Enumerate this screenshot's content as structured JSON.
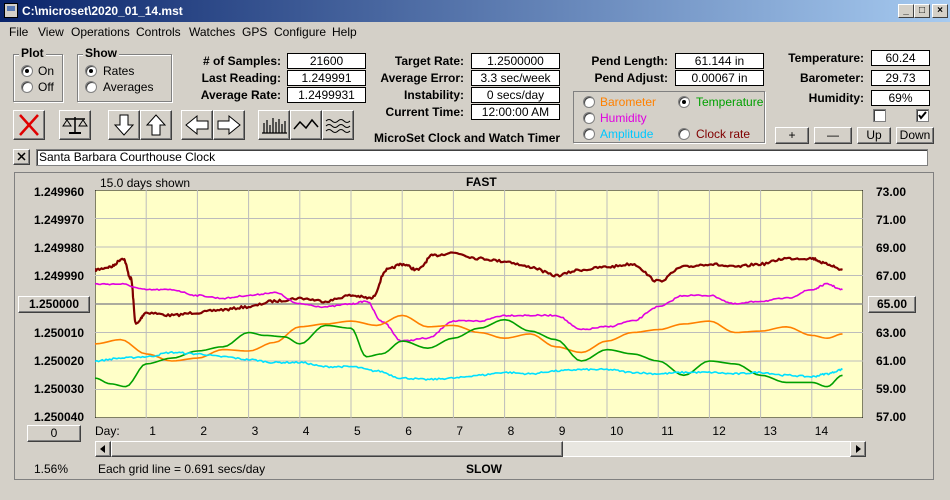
{
  "window": {
    "title": "C:\\microset\\2020_01_14.mst"
  },
  "menu": [
    "File",
    "View",
    "Operations",
    "Controls",
    "Watches",
    "GPS",
    "Configure",
    "Help"
  ],
  "plot_group": {
    "label": "Plot",
    "options": [
      "On",
      "Off"
    ],
    "selected": "On"
  },
  "show_group": {
    "label": "Show",
    "options": [
      "Rates",
      "Averages"
    ],
    "selected": "Rates"
  },
  "stats": {
    "samples_label": "# of Samples:",
    "samples": "21600",
    "last_label": "Last Reading:",
    "last": "1.249991",
    "avg_label": "Average Rate:",
    "avg": "1.2499931"
  },
  "target": {
    "rate_label": "Target Rate:",
    "rate": "1.2500000",
    "error_label": "Average Error:",
    "error": "3.3 sec/week",
    "instab_label": "Instability:",
    "instab": "0 secs/day",
    "time_label": "Current Time:",
    "time": "12:00:00 AM"
  },
  "pend": {
    "len_label": "Pend Length:",
    "len": "61.144 in",
    "adj_label": "Pend Adjust:",
    "adj": "0.00067 in"
  },
  "env": {
    "temp_label": "Temperature:",
    "temp": "60.24",
    "baro_label": "Barometer:",
    "baro": "29.73",
    "hum_label": "Humidity:",
    "hum": "69%",
    "chk1": false,
    "chk2": true
  },
  "sensor_select": {
    "selected": "Temperature",
    "items": [
      {
        "label": "Barometer",
        "color": "#ff8000"
      },
      {
        "label": "Temperature",
        "color": "#00a000"
      },
      {
        "label": "Humidity",
        "color": "#e000e0"
      },
      {
        "label": "Amplitude",
        "color": "#00c8ff"
      },
      {
        "label": "Clock rate",
        "color": "#800000"
      }
    ]
  },
  "adjust_buttons": [
    "+",
    "—",
    "Up",
    "Down"
  ],
  "app_caption": "MicroSet Clock and Watch Timer",
  "clock_name": "Santa Barbara Courthouse Clock",
  "icons": [
    "close-x-icon",
    "balance-scale-icon",
    "arrow-down-icon",
    "arrow-up-icon",
    "arrow-left-icon",
    "arrow-right-icon",
    "bar-graph-icon",
    "line-graph-icon",
    "smooth-graph-icon"
  ],
  "chart_data": {
    "type": "line",
    "days_shown": "15.0 days shown",
    "top_label": "FAST",
    "bottom_label": "SLOW",
    "grid_note": "Each grid line = 0.691 secs/day",
    "percent": "1.56%",
    "center_left_button": "1.250000",
    "center_right_button": "65.00",
    "bottom_left_button": "0",
    "x_label": "Day:",
    "x_ticks": [
      "1",
      "2",
      "3",
      "4",
      "5",
      "6",
      "7",
      "8",
      "9",
      "10",
      "11",
      "12",
      "13",
      "14"
    ],
    "y_left_ticks": [
      "1.249960",
      "1.249970",
      "1.249980",
      "1.249990",
      "1.250000",
      "1.250010",
      "1.250020",
      "1.250030",
      "1.250040"
    ],
    "y_right_ticks": [
      "73.00",
      "71.00",
      "69.00",
      "67.00",
      "65.00",
      "63.00",
      "61.00",
      "59.00",
      "57.00"
    ],
    "ylim_left": [
      1.24996,
      1.25004
    ],
    "ylim_right": [
      57,
      73
    ],
    "xlim": [
      0,
      15
    ],
    "background": "#ffffc8",
    "series": [
      {
        "name": "Clock rate",
        "color": "#800000",
        "axis": "left",
        "noise": 9e-07,
        "x": [
          0,
          0.3,
          0.55,
          0.7,
          0.8,
          1,
          1.5,
          2,
          2.5,
          3,
          3.5,
          4,
          4.5,
          5,
          5.4,
          5.7,
          6,
          6.3,
          6.6,
          7,
          7.5,
          8,
          8.5,
          9,
          9.5,
          10,
          10.5,
          11,
          11.5,
          12,
          12.5,
          13,
          13.5,
          14,
          14.3,
          14.6
        ],
        "y": [
          1.249988,
          1.249987,
          1.249984,
          1.249991,
          1.250007,
          1.250003,
          1.250004,
          1.250003,
          1.250002,
          1.250001,
          1.249999,
          1.249998,
          1.249999,
          1.249997,
          1.249998,
          1.249988,
          1.249986,
          1.249988,
          1.249983,
          1.249982,
          1.249984,
          1.249985,
          1.249987,
          1.24999,
          1.249988,
          1.249987,
          1.249986,
          1.249992,
          1.249987,
          1.249986,
          1.249987,
          1.249986,
          1.249984,
          1.249984,
          1.249986,
          1.249988
        ]
      },
      {
        "name": "Humidity",
        "color": "#e000e0",
        "axis": "left",
        "noise": 5e-07,
        "x": [
          0,
          0.5,
          1,
          1.5,
          2,
          2.5,
          3,
          3.5,
          4,
          4.5,
          5,
          5.3,
          5.6,
          6,
          6.5,
          7,
          7.5,
          8,
          8.5,
          9,
          9.5,
          10,
          10.5,
          11,
          11.5,
          12,
          12.5,
          13,
          13.5,
          14,
          14.3,
          14.6
        ],
        "y": [
          1.249993,
          1.249993,
          1.249995,
          1.249995,
          1.249997,
          1.249998,
          1.249997,
          1.249996,
          1.25,
          1.250001,
          1.25,
          1.249999,
          1.250006,
          1.250013,
          1.250012,
          1.250006,
          1.250006,
          1.250004,
          1.250004,
          1.250004,
          1.250009,
          1.250008,
          1.250006,
          1.250001,
          1.249997,
          1.249997,
          1.25,
          1.249999,
          1.249998,
          1.249995,
          1.249993,
          1.249995
        ]
      },
      {
        "name": "Barometer",
        "color": "#ff8000",
        "axis": "right",
        "x": [
          0,
          0.5,
          1,
          1.5,
          2,
          2.5,
          3,
          3.5,
          4,
          4.5,
          5,
          5.5,
          6,
          6.5,
          7,
          7.5,
          8,
          8.5,
          9,
          9.5,
          10,
          10.5,
          11,
          11.5,
          12,
          12.5,
          13,
          13.5,
          14,
          14.3,
          14.6
        ],
        "y": [
          62.2,
          62.5,
          61.5,
          61.0,
          61.2,
          61.8,
          61.7,
          62.3,
          63.4,
          63.6,
          63.8,
          63.5,
          64.2,
          63.4,
          63.5,
          63.0,
          62.6,
          62.9,
          62.0,
          61.6,
          62.4,
          63.0,
          63.2,
          63.6,
          63.8,
          63.0,
          63.1,
          63.4,
          62.8,
          62.6,
          62.9
        ]
      },
      {
        "name": "Temperature",
        "color": "#00a000",
        "axis": "right",
        "x": [
          0,
          0.3,
          0.6,
          1,
          1.5,
          2,
          2.5,
          3,
          3.3,
          3.7,
          4,
          4.5,
          5,
          5.3,
          5.6,
          6,
          6.5,
          7,
          7.5,
          8,
          8.5,
          9,
          9.5,
          10,
          10.5,
          11,
          11.5,
          12,
          12.5,
          13,
          13.5,
          14,
          14.3,
          14.6
        ],
        "y": [
          59.8,
          59.4,
          59.2,
          60.8,
          61.2,
          61.7,
          62.0,
          63.0,
          62.8,
          62.7,
          62.2,
          63.5,
          63.3,
          61.3,
          61.5,
          62.4,
          61.9,
          62.6,
          63.3,
          63.9,
          63.1,
          62.5,
          61.0,
          61.8,
          61.5,
          61.0,
          60.0,
          61.0,
          60.8,
          60.0,
          59.5,
          59.5,
          59.2,
          60.0
        ]
      },
      {
        "name": "Amplitude",
        "color": "#00e0ff",
        "axis": "right",
        "noise": 0.12,
        "x": [
          0,
          0.5,
          1,
          1.5,
          2,
          2.5,
          3,
          3.5,
          4,
          4.5,
          5,
          5.5,
          6,
          6.5,
          7,
          7.5,
          8,
          8.5,
          9,
          9.5,
          10,
          10.5,
          11,
          11.5,
          12,
          12.5,
          13,
          13.5,
          14,
          14.3,
          14.6
        ],
        "y": [
          61.0,
          61.2,
          61.3,
          61.6,
          61.5,
          61.3,
          61.1,
          60.9,
          60.9,
          60.6,
          60.6,
          60.3,
          59.8,
          59.7,
          59.8,
          60.0,
          60.2,
          60.1,
          60.3,
          60.4,
          60.4,
          60.2,
          60.1,
          60.2,
          60.2,
          60.1,
          60.2,
          60.0,
          59.9,
          60.1,
          60.4
        ]
      }
    ]
  }
}
